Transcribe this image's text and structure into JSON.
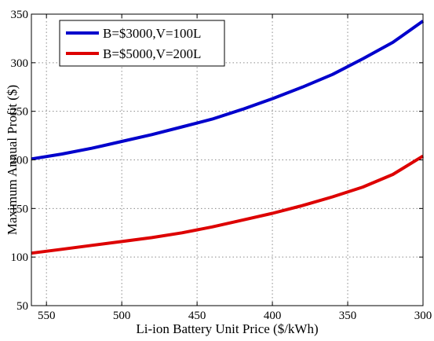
{
  "chart_data": {
    "type": "line",
    "title": "",
    "xlabel": "Li-ion Battery Unit Price ($/kWh)",
    "ylabel": "Maximum Annual Profit ($)",
    "xlim": [
      560,
      300
    ],
    "ylim": [
      50,
      350
    ],
    "x_reversed": true,
    "grid": true,
    "legend_position": "top-left",
    "xticks": [
      550,
      500,
      450,
      400,
      350,
      300
    ],
    "yticks": [
      50,
      100,
      150,
      200,
      250,
      300,
      350
    ],
    "series": [
      {
        "name": "B=$3000,V=100L",
        "color": "#0000cc",
        "x": [
          560,
          540,
          520,
          500,
          480,
          460,
          440,
          420,
          400,
          380,
          360,
          340,
          320,
          300
        ],
        "y": [
          201,
          206,
          212,
          219,
          226,
          234,
          242,
          252,
          263,
          275,
          288,
          304,
          321,
          343
        ]
      },
      {
        "name": "B=$5000,V=200L",
        "color": "#dd0000",
        "x": [
          560,
          540,
          520,
          500,
          480,
          460,
          440,
          420,
          400,
          380,
          360,
          340,
          320,
          300
        ],
        "y": [
          104,
          108,
          112,
          116,
          120,
          125,
          131,
          138,
          145,
          153,
          162,
          172,
          185,
          204
        ]
      }
    ]
  }
}
